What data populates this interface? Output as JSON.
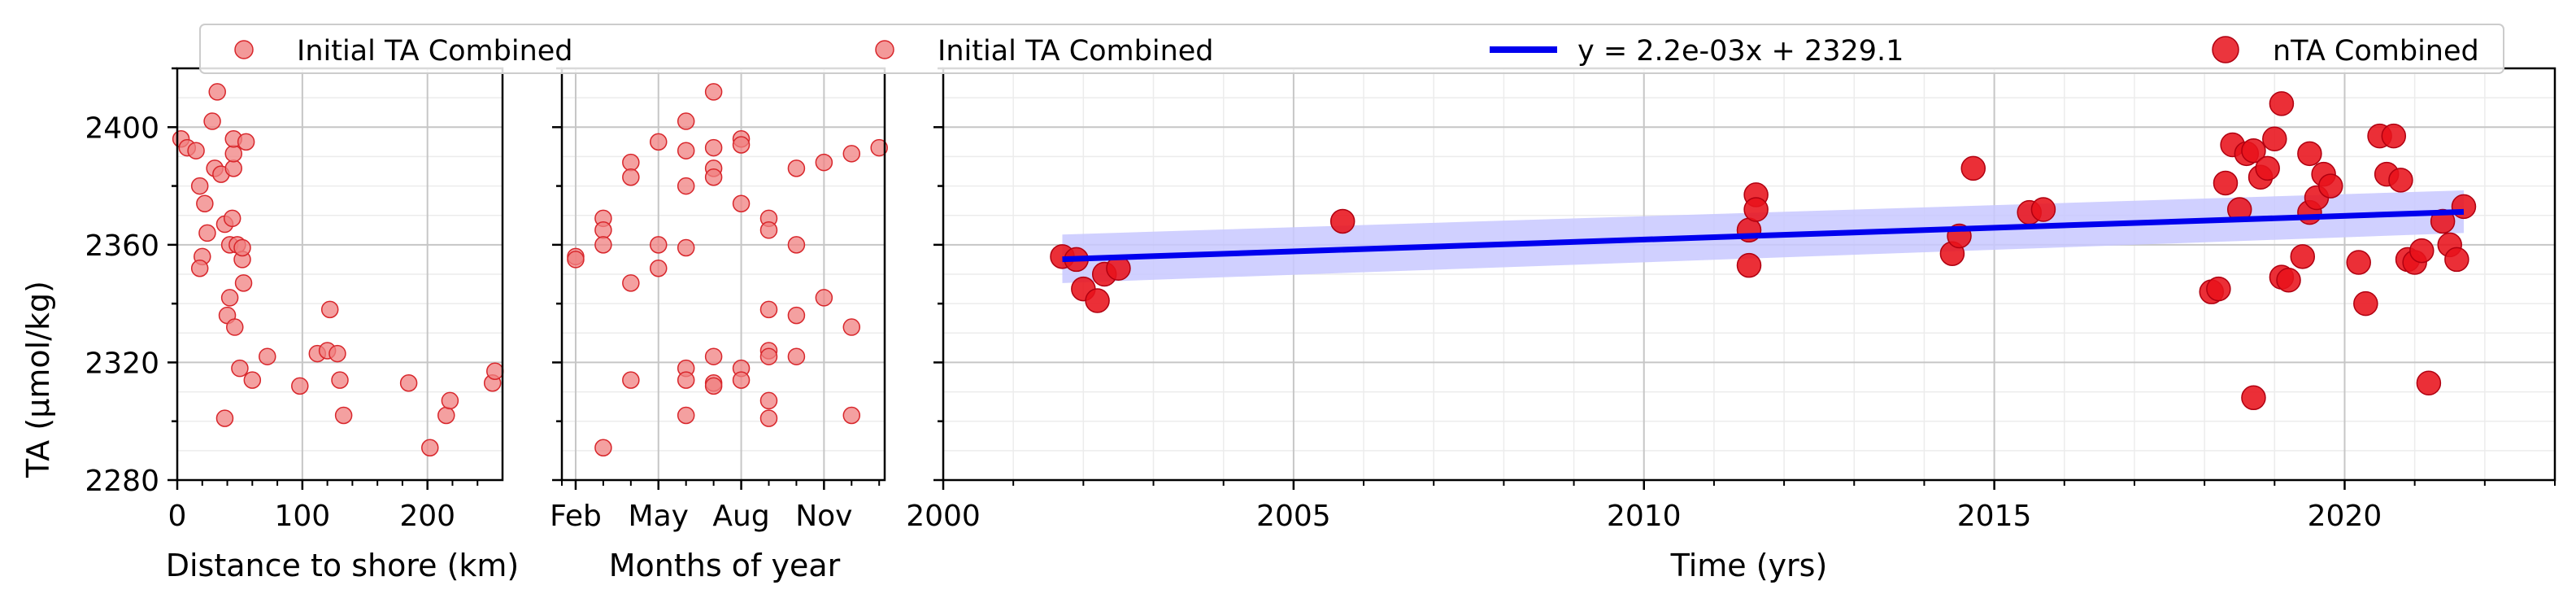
{
  "legend": {
    "placement": "top",
    "entries": [
      {
        "label": "Initial TA Combined",
        "marker": "small-circle",
        "color": "#f08080"
      },
      {
        "label": "Initial TA Combined",
        "marker": "small-circle",
        "color": "#f08080"
      },
      {
        "label": "y = 2.2e-03x + 2329.1",
        "marker": "line",
        "color": "#0000ee"
      },
      {
        "label": "nTA Combined",
        "marker": "large-circle",
        "color": "#e8121b"
      }
    ]
  },
  "colors": {
    "initial": "#f08080",
    "initial_edge": "#d8262b",
    "ntA": "#e8121b",
    "fit": "#0000ee",
    "band": "#c8c8ff"
  },
  "chart_data": [
    {
      "type": "scatter",
      "xlabel": "Distance to shore (km)",
      "ylabel": "TA (µmol/kg)",
      "xlim": [
        0,
        260
      ],
      "ylim": [
        2280,
        2420
      ],
      "xticks": [
        0,
        100,
        200
      ],
      "yticks": [
        2280,
        2320,
        2360,
        2400
      ],
      "grid": true,
      "series": [
        {
          "name": "Initial TA Combined",
          "points": [
            [
              3,
              2396
            ],
            [
              8,
              2393
            ],
            [
              15,
              2392
            ],
            [
              18,
              2380
            ],
            [
              22,
              2374
            ],
            [
              20,
              2356
            ],
            [
              18,
              2352
            ],
            [
              24,
              2364
            ],
            [
              28,
              2402
            ],
            [
              30,
              2386
            ],
            [
              32,
              2412
            ],
            [
              35,
              2384
            ],
            [
              38,
              2367
            ],
            [
              40,
              2336
            ],
            [
              38,
              2301
            ],
            [
              42,
              2342
            ],
            [
              42,
              2360
            ],
            [
              44,
              2369
            ],
            [
              45,
              2386
            ],
            [
              45,
              2391
            ],
            [
              45,
              2396
            ],
            [
              46,
              2332
            ],
            [
              48,
              2360
            ],
            [
              50,
              2318
            ],
            [
              52,
              2355
            ],
            [
              52,
              2359
            ],
            [
              53,
              2347
            ],
            [
              55,
              2395
            ],
            [
              60,
              2314
            ],
            [
              72,
              2322
            ],
            [
              98,
              2312
            ],
            [
              112,
              2323
            ],
            [
              120,
              2324
            ],
            [
              122,
              2338
            ],
            [
              128,
              2323
            ],
            [
              130,
              2314
            ],
            [
              133,
              2302
            ],
            [
              185,
              2313
            ],
            [
              202,
              2291
            ],
            [
              215,
              2302
            ],
            [
              218,
              2307
            ],
            [
              252,
              2313
            ],
            [
              254,
              2317
            ]
          ]
        }
      ]
    },
    {
      "type": "scatter",
      "xlabel": "Months of year",
      "xlim": [
        1.5,
        13.2
      ],
      "ylim": [
        2280,
        2420
      ],
      "xticks": [
        2,
        5,
        8,
        11
      ],
      "xticklabels": [
        "Feb",
        "May",
        "Aug",
        "Nov"
      ],
      "grid": true,
      "series": [
        {
          "name": "Initial TA Combined",
          "points": [
            [
              2,
              2356
            ],
            [
              2,
              2355
            ],
            [
              3,
              2369
            ],
            [
              3,
              2365
            ],
            [
              3,
              2360
            ],
            [
              3,
              2291
            ],
            [
              4,
              2388
            ],
            [
              4,
              2383
            ],
            [
              4,
              2347
            ],
            [
              4,
              2314
            ],
            [
              5,
              2395
            ],
            [
              5,
              2360
            ],
            [
              5,
              2352
            ],
            [
              6,
              2402
            ],
            [
              6,
              2392
            ],
            [
              6,
              2380
            ],
            [
              6,
              2359
            ],
            [
              6,
              2318
            ],
            [
              6,
              2314
            ],
            [
              6,
              2302
            ],
            [
              7,
              2412
            ],
            [
              7,
              2393
            ],
            [
              7,
              2386
            ],
            [
              7,
              2383
            ],
            [
              7,
              2322
            ],
            [
              7,
              2313
            ],
            [
              7,
              2312
            ],
            [
              8,
              2396
            ],
            [
              8,
              2394
            ],
            [
              8,
              2374
            ],
            [
              8,
              2318
            ],
            [
              8,
              2314
            ],
            [
              9,
              2369
            ],
            [
              9,
              2365
            ],
            [
              9,
              2338
            ],
            [
              9,
              2324
            ],
            [
              9,
              2322
            ],
            [
              9,
              2307
            ],
            [
              9,
              2301
            ],
            [
              10,
              2386
            ],
            [
              10,
              2360
            ],
            [
              10,
              2336
            ],
            [
              10,
              2322
            ],
            [
              11,
              2388
            ],
            [
              11,
              2342
            ],
            [
              12,
              2391
            ],
            [
              12,
              2332
            ],
            [
              12,
              2302
            ],
            [
              13,
              2393
            ]
          ]
        }
      ]
    },
    {
      "type": "scatter",
      "xlabel": "Time (yrs)",
      "xlim": [
        2000,
        2023
      ],
      "ylim": [
        2280,
        2420
      ],
      "xticks": [
        2000,
        2005,
        2010,
        2015,
        2020
      ],
      "grid": true,
      "series": [
        {
          "name": "nTA Combined",
          "points": [
            [
              2001.7,
              2356
            ],
            [
              2001.9,
              2355
            ],
            [
              2002.0,
              2345
            ],
            [
              2002.2,
              2341
            ],
            [
              2002.3,
              2350
            ],
            [
              2002.5,
              2352
            ],
            [
              2005.7,
              2368
            ],
            [
              2011.5,
              2365
            ],
            [
              2011.5,
              2353
            ],
            [
              2011.6,
              2377
            ],
            [
              2011.6,
              2372
            ],
            [
              2014.4,
              2357
            ],
            [
              2014.5,
              2363
            ],
            [
              2014.7,
              2386
            ],
            [
              2015.5,
              2371
            ],
            [
              2015.7,
              2372
            ],
            [
              2018.1,
              2344
            ],
            [
              2018.2,
              2345
            ],
            [
              2018.3,
              2381
            ],
            [
              2018.4,
              2394
            ],
            [
              2018.5,
              2372
            ],
            [
              2018.6,
              2391
            ],
            [
              2018.7,
              2392
            ],
            [
              2018.7,
              2308
            ],
            [
              2018.8,
              2383
            ],
            [
              2018.9,
              2386
            ],
            [
              2019.0,
              2396
            ],
            [
              2019.1,
              2408
            ],
            [
              2019.1,
              2349
            ],
            [
              2019.2,
              2348
            ],
            [
              2019.4,
              2356
            ],
            [
              2019.5,
              2371
            ],
            [
              2019.5,
              2391
            ],
            [
              2019.6,
              2376
            ],
            [
              2019.7,
              2384
            ],
            [
              2019.8,
              2380
            ],
            [
              2020.2,
              2354
            ],
            [
              2020.3,
              2340
            ],
            [
              2020.5,
              2397
            ],
            [
              2020.6,
              2384
            ],
            [
              2020.7,
              2397
            ],
            [
              2020.8,
              2382
            ],
            [
              2020.9,
              2355
            ],
            [
              2021.0,
              2354
            ],
            [
              2021.1,
              2358
            ],
            [
              2021.2,
              2313
            ],
            [
              2021.4,
              2368
            ],
            [
              2021.5,
              2360
            ],
            [
              2021.6,
              2355
            ],
            [
              2021.7,
              2373
            ]
          ]
        },
        {
          "name": "y = 2.2e-03x + 2329.1",
          "type": "line",
          "x": [
            2001.7,
            2021.7
          ],
          "y": [
            2355.1,
            2371.2
          ],
          "band_upper": [
            2363.5,
            2378.5
          ],
          "band_lower": [
            2347.0,
            2364.0
          ]
        }
      ]
    }
  ]
}
